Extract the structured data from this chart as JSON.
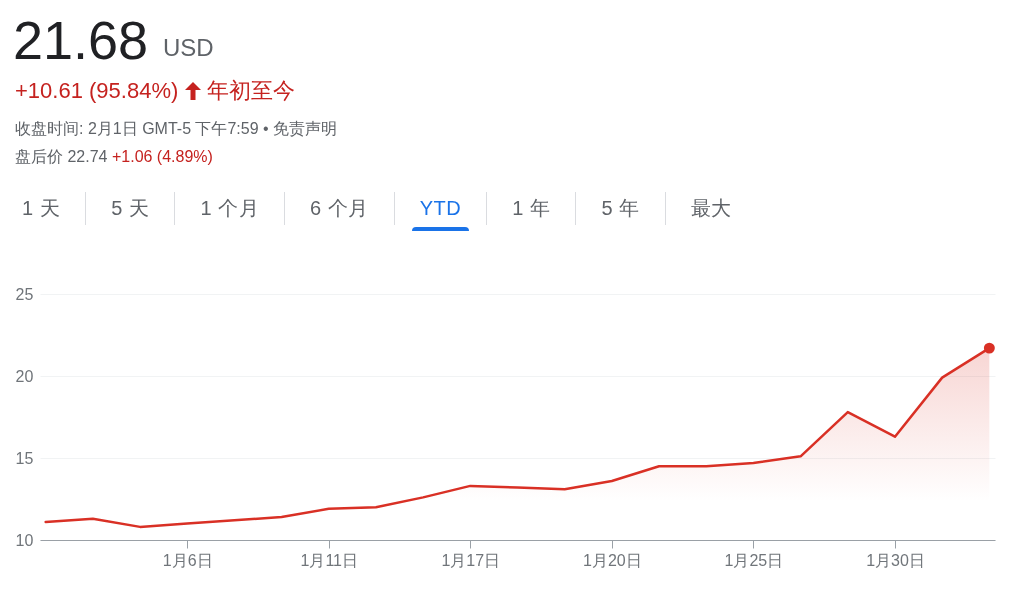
{
  "chart_data": {
    "type": "area",
    "title": "21.68",
    "annotations": [
      "USD",
      "+10.61 (95.84%)",
      "年初至今",
      "收盘时间: 2月1日 GMT-5 下午7:59 • 免责声明",
      "盘后价 22.74",
      "+1.06 (4.89%)",
      "1 天",
      "5 天",
      "1 个月",
      "6 个月",
      "YTD",
      "1 年",
      "5 年",
      "最大"
    ],
    "categories": [
      null,
      null,
      null,
      "1月6日",
      null,
      null,
      "1月11日",
      null,
      null,
      "1月17日",
      null,
      null,
      "1月20日",
      null,
      null,
      "1月25日",
      null,
      null,
      "1月30日",
      null,
      null
    ],
    "series": [
      {
        "color": "#d93025",
        "values": [
          11.1,
          11.3,
          10.8,
          11.0,
          11.2,
          11.4,
          11.9,
          12.0,
          12.6,
          13.3,
          13.2,
          13.1,
          13.6,
          14.5,
          14.5,
          14.7,
          15.1,
          17.8,
          16.3,
          19.9,
          21.7
        ]
      },
      {
        "type": "scatter",
        "color": "#d93025",
        "marker": "circle",
        "values": [
          null,
          null,
          null,
          null,
          null,
          null,
          null,
          null,
          null,
          null,
          null,
          null,
          null,
          null,
          null,
          null,
          null,
          null,
          null,
          null,
          21.7
        ]
      }
    ],
    "ylim": [
      10,
      25
    ],
    "yticks": [
      10,
      15,
      20,
      25
    ],
    "grid": "y"
  }
}
